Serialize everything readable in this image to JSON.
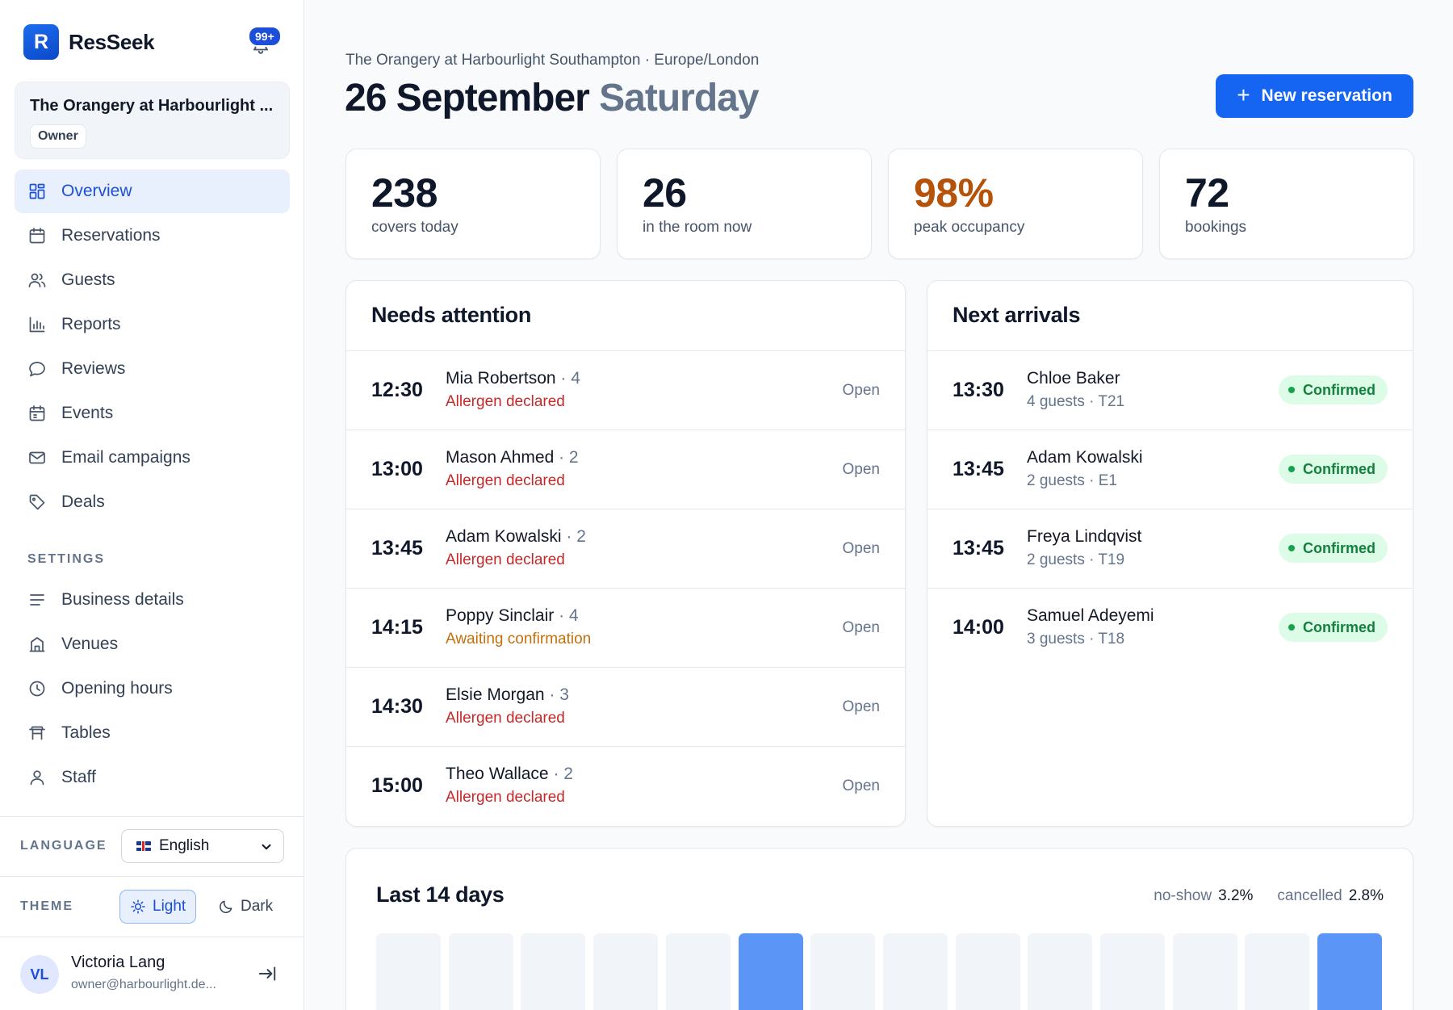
{
  "app": {
    "name": "ResSeek",
    "logo_letter": "R",
    "notifications_badge": "99+"
  },
  "venue_card": {
    "name": "The Orangery at Harbourlight ...",
    "role": "Owner"
  },
  "nav": [
    {
      "label": "Overview",
      "icon": "grid-icon",
      "active": true
    },
    {
      "label": "Reservations",
      "icon": "calendar-icon"
    },
    {
      "label": "Guests",
      "icon": "users-icon"
    },
    {
      "label": "Reports",
      "icon": "bar-chart-icon"
    },
    {
      "label": "Reviews",
      "icon": "chat-bubble-icon"
    },
    {
      "label": "Events",
      "icon": "calendar-event-icon"
    },
    {
      "label": "Email campaigns",
      "icon": "mail-icon"
    },
    {
      "label": "Deals",
      "icon": "tag-icon"
    }
  ],
  "settings": {
    "label": "SETTINGS",
    "items": [
      {
        "label": "Business details",
        "icon": "lines-icon"
      },
      {
        "label": "Venues",
        "icon": "building-icon"
      },
      {
        "label": "Opening hours",
        "icon": "clock-icon"
      },
      {
        "label": "Tables",
        "icon": "table-icon"
      },
      {
        "label": "Staff",
        "icon": "user-icon"
      }
    ]
  },
  "language": {
    "label": "LANGUAGE",
    "selected": "English"
  },
  "theme": {
    "label": "THEME",
    "light": "Light",
    "dark": "Dark",
    "selected": "Light"
  },
  "user": {
    "initials": "VL",
    "name": "Victoria Lang",
    "email": "owner@harbourlight.de..."
  },
  "header": {
    "venue_timezone": "The Orangery at Harbourlight Southampton · Europe/London",
    "date": "26 September",
    "weekday": "Saturday",
    "new_button": "New reservation"
  },
  "stats": [
    {
      "value": "238",
      "label": "covers today",
      "highlight": false
    },
    {
      "value": "26",
      "label": "in the room now",
      "highlight": false
    },
    {
      "value": "98%",
      "label": "peak occupancy",
      "highlight": true,
      "color": "#b45309"
    },
    {
      "value": "72",
      "label": "bookings",
      "highlight": false
    }
  ],
  "needs_attention": {
    "title": "Needs attention",
    "rows": [
      {
        "time": "12:30",
        "name": "Mia Robertson",
        "party": "· 4",
        "note": "Allergen declared",
        "tone": "red",
        "status": "Open"
      },
      {
        "time": "13:00",
        "name": "Mason Ahmed",
        "party": "· 2",
        "note": "Allergen declared",
        "tone": "red",
        "status": "Open"
      },
      {
        "time": "13:45",
        "name": "Adam Kowalski",
        "party": "· 2",
        "note": "Allergen declared",
        "tone": "red",
        "status": "Open"
      },
      {
        "time": "14:15",
        "name": "Poppy Sinclair",
        "party": "· 4",
        "note": "Awaiting confirmation",
        "tone": "amber",
        "status": "Open"
      },
      {
        "time": "14:30",
        "name": "Elsie Morgan",
        "party": "· 3",
        "note": "Allergen declared",
        "tone": "red",
        "status": "Open"
      },
      {
        "time": "15:00",
        "name": "Theo Wallace",
        "party": "· 2",
        "note": "Allergen declared",
        "tone": "red",
        "status": "Open"
      }
    ]
  },
  "next_arrivals": {
    "title": "Next arrivals",
    "rows": [
      {
        "time": "13:30",
        "name": "Chloe Baker",
        "detail": "4 guests · T21",
        "status": "Confirmed"
      },
      {
        "time": "13:45",
        "name": "Adam Kowalski",
        "detail": "2 guests · E1",
        "status": "Confirmed"
      },
      {
        "time": "13:45",
        "name": "Freya Lindqvist",
        "detail": "2 guests · T19",
        "status": "Confirmed"
      },
      {
        "time": "14:00",
        "name": "Samuel Adeyemi",
        "detail": "3 guests · T18",
        "status": "Confirmed"
      }
    ]
  },
  "last14": {
    "title": "Last 14 days",
    "noshow_label": "no-show",
    "noshow_value": "3.2%",
    "cancelled_label": "cancelled",
    "cancelled_value": "2.8%",
    "highlighted_days": [
      6,
      14
    ],
    "colors": {
      "bar": "#f1f5f9",
      "highlight": "#5b95f5"
    }
  }
}
